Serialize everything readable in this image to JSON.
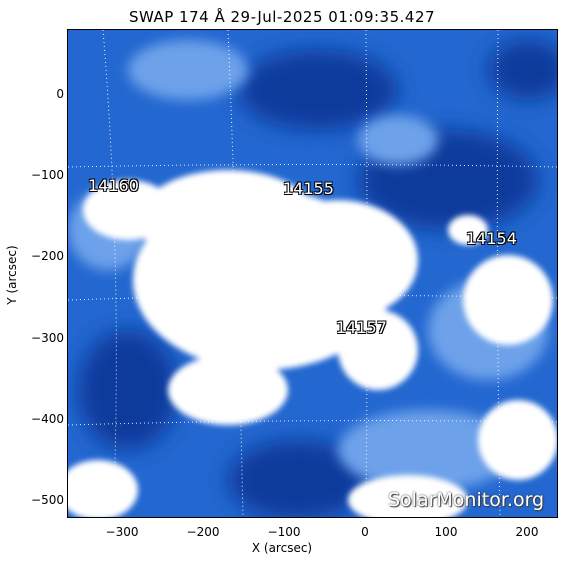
{
  "title": "SWAP 174 Å 29-Jul-2025 01:09:35.427",
  "axes": {
    "xlabel": "X (arcsec)",
    "ylabel": "Y (arcsec)",
    "x_ticks": [
      "−300",
      "−200",
      "−100",
      "0",
      "100",
      "200"
    ],
    "y_ticks": [
      "0",
      "−100",
      "−200",
      "−300",
      "−400",
      "−500"
    ]
  },
  "regions": [
    {
      "label": "14160"
    },
    {
      "label": "14155"
    },
    {
      "label": "14154"
    },
    {
      "label": "14157"
    }
  ],
  "watermark": "SolarMonitor.org",
  "colors": {
    "background": "#1a5fc8",
    "bright": "#ffffff",
    "dark": "#0d2f8a"
  }
}
